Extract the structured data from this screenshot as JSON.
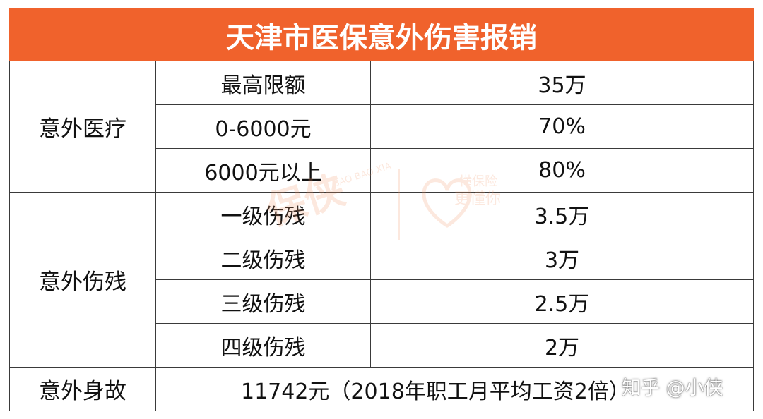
{
  "title": "天津市医保意外伤害报销",
  "sections": {
    "medical": {
      "category": "意外医疗",
      "rows": [
        {
          "item": "最高限额",
          "value": "35万"
        },
        {
          "item": "0-6000元",
          "value": "70%"
        },
        {
          "item": "6000元以上",
          "value": "80%"
        }
      ]
    },
    "disability": {
      "category": "意外伤残",
      "rows": [
        {
          "item": "一级伤残",
          "value": "3.5万"
        },
        {
          "item": "二级伤残",
          "value": "3万"
        },
        {
          "item": "三级伤残",
          "value": "2.5万"
        },
        {
          "item": "四级伤残",
          "value": "2万"
        }
      ]
    },
    "death": {
      "category": "意外身故",
      "value": "11742元（2018年职工月平均工资2倍）"
    }
  },
  "watermark": {
    "brand": "保侠",
    "tagline_line1": "懂保险",
    "tagline_line2": "更懂你",
    "latin": "BAO BAO XIA"
  },
  "attribution": "知乎 @小侠",
  "colors": {
    "header_bg": "#f0622c",
    "header_text": "#ffffff",
    "border": "#3a3a3a",
    "watermark": "#f29a6b"
  }
}
